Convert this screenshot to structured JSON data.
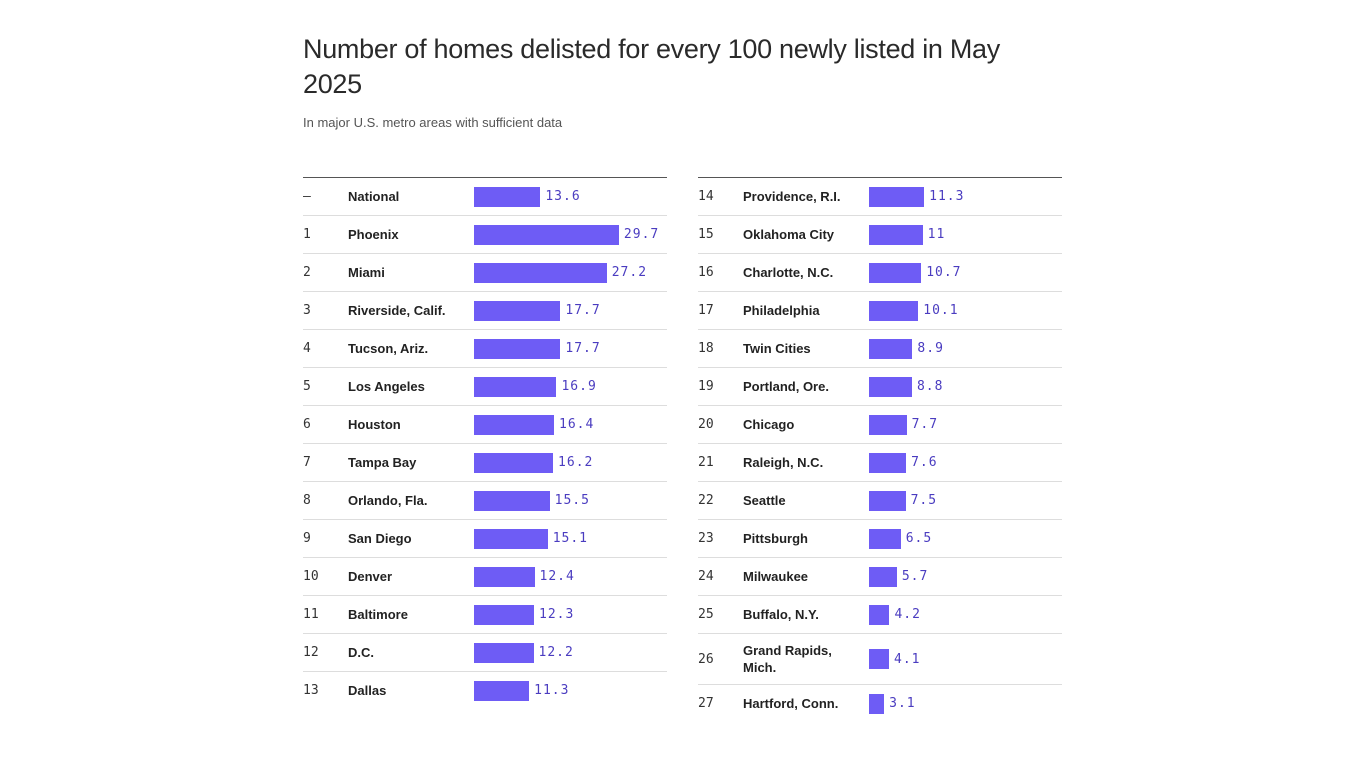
{
  "chart_data": {
    "type": "bar",
    "title": "Number of homes delisted for every 100 newly listed in May 2025",
    "subtitle": "In major U.S. metro areas with sufficient data",
    "bar_color": "#6e5cf5",
    "value_color": "#4a3cc0",
    "columns": [
      [
        {
          "rank": "–",
          "name": "National",
          "value": 13.6
        },
        {
          "rank": "1",
          "name": "Phoenix",
          "value": 29.7
        },
        {
          "rank": "2",
          "name": "Miami",
          "value": 27.2
        },
        {
          "rank": "3",
          "name": "Riverside, Calif.",
          "value": 17.7
        },
        {
          "rank": "4",
          "name": "Tucson, Ariz.",
          "value": 17.7
        },
        {
          "rank": "5",
          "name": "Los Angeles",
          "value": 16.9
        },
        {
          "rank": "6",
          "name": "Houston",
          "value": 16.4
        },
        {
          "rank": "7",
          "name": "Tampa Bay",
          "value": 16.2
        },
        {
          "rank": "8",
          "name": "Orlando, Fla.",
          "value": 15.5
        },
        {
          "rank": "9",
          "name": "San Diego",
          "value": 15.1
        },
        {
          "rank": "10",
          "name": "Denver",
          "value": 12.4
        },
        {
          "rank": "11",
          "name": "Baltimore",
          "value": 12.3
        },
        {
          "rank": "12",
          "name": "D.C.",
          "value": 12.2
        },
        {
          "rank": "13",
          "name": "Dallas",
          "value": 11.3
        }
      ],
      [
        {
          "rank": "14",
          "name": "Providence, R.I.",
          "value": 11.3
        },
        {
          "rank": "15",
          "name": "Oklahoma City",
          "value": 11
        },
        {
          "rank": "16",
          "name": "Charlotte, N.C.",
          "value": 10.7
        },
        {
          "rank": "17",
          "name": "Philadelphia",
          "value": 10.1
        },
        {
          "rank": "18",
          "name": "Twin Cities",
          "value": 8.9
        },
        {
          "rank": "19",
          "name": "Portland, Ore.",
          "value": 8.8
        },
        {
          "rank": "20",
          "name": "Chicago",
          "value": 7.7
        },
        {
          "rank": "21",
          "name": "Raleigh, N.C.",
          "value": 7.6
        },
        {
          "rank": "22",
          "name": "Seattle",
          "value": 7.5
        },
        {
          "rank": "23",
          "name": "Pittsburgh",
          "value": 6.5
        },
        {
          "rank": "24",
          "name": "Milwaukee",
          "value": 5.7
        },
        {
          "rank": "25",
          "name": "Buffalo, N.Y.",
          "value": 4.2
        },
        {
          "rank": "26",
          "name": "Grand Rapids, Mich.",
          "value": 4.1
        },
        {
          "rank": "27",
          "name": "Hartford, Conn.",
          "value": 3.1
        }
      ]
    ]
  }
}
